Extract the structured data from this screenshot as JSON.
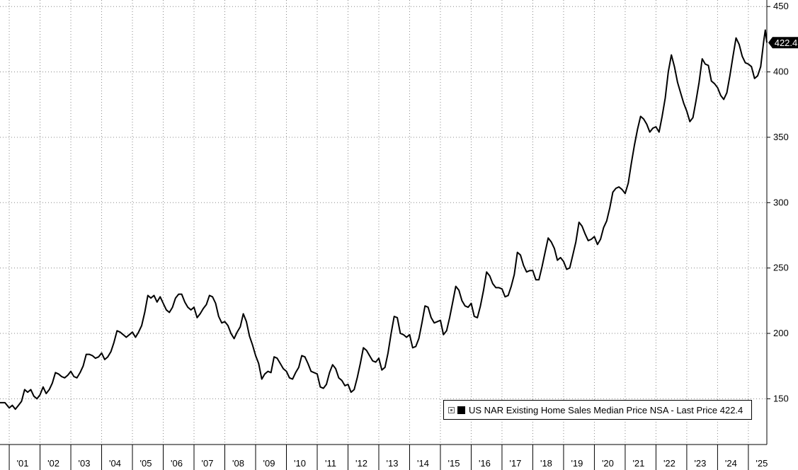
{
  "chart_data": {
    "type": "line",
    "title": "",
    "xlabel": "",
    "ylabel": "",
    "x_range": [
      2000.7,
      2025.6
    ],
    "ylim": [
      115,
      455
    ],
    "y_ticks": [
      150,
      200,
      250,
      300,
      350,
      400,
      450
    ],
    "x_ticks": [
      {
        "year": 2001,
        "label": "'01"
      },
      {
        "year": 2002,
        "label": "'02"
      },
      {
        "year": 2003,
        "label": "'03"
      },
      {
        "year": 2004,
        "label": "'04"
      },
      {
        "year": 2005,
        "label": "'05"
      },
      {
        "year": 2006,
        "label": "'06"
      },
      {
        "year": 2007,
        "label": "'07"
      },
      {
        "year": 2008,
        "label": "'08"
      },
      {
        "year": 2009,
        "label": "'09"
      },
      {
        "year": 2010,
        "label": "'10"
      },
      {
        "year": 2011,
        "label": "'11"
      },
      {
        "year": 2012,
        "label": "'12"
      },
      {
        "year": 2013,
        "label": "'13"
      },
      {
        "year": 2014,
        "label": "'14"
      },
      {
        "year": 2015,
        "label": "'15"
      },
      {
        "year": 2016,
        "label": "'16"
      },
      {
        "year": 2017,
        "label": "'17"
      },
      {
        "year": 2018,
        "label": "'18"
      },
      {
        "year": 2019,
        "label": "'19"
      },
      {
        "year": 2020,
        "label": "'20"
      },
      {
        "year": 2021,
        "label": "'21"
      },
      {
        "year": 2022,
        "label": "'22"
      },
      {
        "year": 2023,
        "label": "'23"
      },
      {
        "year": 2024,
        "label": "'24"
      },
      {
        "year": 2025,
        "label": "'25"
      }
    ],
    "grid": true,
    "legend_position": "bottom-right",
    "line_color": "#000000",
    "series": [
      {
        "name": "US NAR Existing Home Sales Median Price NSA",
        "points": [
          [
            2000.7,
            147
          ],
          [
            2000.86,
            147
          ],
          [
            2001.0,
            143
          ],
          [
            2001.1,
            145
          ],
          [
            2001.2,
            142
          ],
          [
            2001.3,
            145
          ],
          [
            2001.4,
            148
          ],
          [
            2001.5,
            157
          ],
          [
            2001.6,
            155
          ],
          [
            2001.7,
            157
          ],
          [
            2001.8,
            152
          ],
          [
            2001.9,
            150
          ],
          [
            2002.0,
            153
          ],
          [
            2002.1,
            159
          ],
          [
            2002.2,
            154
          ],
          [
            2002.3,
            157
          ],
          [
            2002.4,
            162
          ],
          [
            2002.5,
            170
          ],
          [
            2002.6,
            169
          ],
          [
            2002.7,
            167
          ],
          [
            2002.8,
            166
          ],
          [
            2002.9,
            168
          ],
          [
            2003.0,
            171
          ],
          [
            2003.1,
            167
          ],
          [
            2003.2,
            166
          ],
          [
            2003.3,
            170
          ],
          [
            2003.4,
            175
          ],
          [
            2003.5,
            184
          ],
          [
            2003.6,
            184
          ],
          [
            2003.7,
            183
          ],
          [
            2003.8,
            181
          ],
          [
            2003.9,
            182
          ],
          [
            2004.0,
            185
          ],
          [
            2004.1,
            180
          ],
          [
            2004.2,
            182
          ],
          [
            2004.3,
            186
          ],
          [
            2004.4,
            193
          ],
          [
            2004.5,
            202
          ],
          [
            2004.6,
            201
          ],
          [
            2004.7,
            199
          ],
          [
            2004.8,
            197
          ],
          [
            2004.9,
            199
          ],
          [
            2005.0,
            201
          ],
          [
            2005.1,
            197
          ],
          [
            2005.2,
            201
          ],
          [
            2005.3,
            206
          ],
          [
            2005.4,
            216
          ],
          [
            2005.5,
            229
          ],
          [
            2005.6,
            227
          ],
          [
            2005.7,
            229
          ],
          [
            2005.8,
            224
          ],
          [
            2005.9,
            228
          ],
          [
            2006.0,
            223
          ],
          [
            2006.1,
            218
          ],
          [
            2006.2,
            216
          ],
          [
            2006.3,
            220
          ],
          [
            2006.4,
            227
          ],
          [
            2006.5,
            230
          ],
          [
            2006.6,
            230
          ],
          [
            2006.7,
            224
          ],
          [
            2006.8,
            220
          ],
          [
            2006.9,
            218
          ],
          [
            2007.0,
            220
          ],
          [
            2007.1,
            212
          ],
          [
            2007.2,
            215
          ],
          [
            2007.3,
            219
          ],
          [
            2007.4,
            222
          ],
          [
            2007.5,
            229
          ],
          [
            2007.6,
            228
          ],
          [
            2007.7,
            223
          ],
          [
            2007.8,
            213
          ],
          [
            2007.9,
            208
          ],
          [
            2008.0,
            209
          ],
          [
            2008.1,
            206
          ],
          [
            2008.2,
            200
          ],
          [
            2008.3,
            196
          ],
          [
            2008.4,
            201
          ],
          [
            2008.5,
            205
          ],
          [
            2008.6,
            215
          ],
          [
            2008.7,
            209
          ],
          [
            2008.8,
            198
          ],
          [
            2008.9,
            191
          ],
          [
            2009.0,
            183
          ],
          [
            2009.1,
            177
          ],
          [
            2009.2,
            165
          ],
          [
            2009.3,
            169
          ],
          [
            2009.4,
            171
          ],
          [
            2009.5,
            170
          ],
          [
            2009.6,
            182
          ],
          [
            2009.7,
            181
          ],
          [
            2009.8,
            177
          ],
          [
            2009.9,
            173
          ],
          [
            2010.0,
            171
          ],
          [
            2010.1,
            166
          ],
          [
            2010.2,
            165
          ],
          [
            2010.3,
            170
          ],
          [
            2010.4,
            174
          ],
          [
            2010.5,
            183
          ],
          [
            2010.6,
            182
          ],
          [
            2010.7,
            177
          ],
          [
            2010.8,
            171
          ],
          [
            2010.9,
            170
          ],
          [
            2011.0,
            169
          ],
          [
            2011.1,
            159
          ],
          [
            2011.2,
            158
          ],
          [
            2011.3,
            161
          ],
          [
            2011.4,
            170
          ],
          [
            2011.5,
            176
          ],
          [
            2011.6,
            173
          ],
          [
            2011.7,
            166
          ],
          [
            2011.8,
            164
          ],
          [
            2011.9,
            160
          ],
          [
            2012.0,
            161
          ],
          [
            2012.1,
            155
          ],
          [
            2012.2,
            157
          ],
          [
            2012.3,
            166
          ],
          [
            2012.4,
            177
          ],
          [
            2012.5,
            189
          ],
          [
            2012.6,
            187
          ],
          [
            2012.7,
            183
          ],
          [
            2012.8,
            179
          ],
          [
            2012.9,
            178
          ],
          [
            2013.0,
            181
          ],
          [
            2013.1,
            172
          ],
          [
            2013.2,
            174
          ],
          [
            2013.3,
            185
          ],
          [
            2013.4,
            200
          ],
          [
            2013.5,
            213
          ],
          [
            2013.6,
            212
          ],
          [
            2013.7,
            200
          ],
          [
            2013.8,
            199
          ],
          [
            2013.9,
            197
          ],
          [
            2014.0,
            199
          ],
          [
            2014.1,
            189
          ],
          [
            2014.2,
            190
          ],
          [
            2014.3,
            196
          ],
          [
            2014.4,
            208
          ],
          [
            2014.5,
            221
          ],
          [
            2014.6,
            220
          ],
          [
            2014.7,
            212
          ],
          [
            2014.8,
            208
          ],
          [
            2014.9,
            209
          ],
          [
            2015.0,
            210
          ],
          [
            2015.1,
            199
          ],
          [
            2015.2,
            202
          ],
          [
            2015.3,
            212
          ],
          [
            2015.4,
            224
          ],
          [
            2015.5,
            236
          ],
          [
            2015.6,
            233
          ],
          [
            2015.7,
            225
          ],
          [
            2015.8,
            221
          ],
          [
            2015.9,
            220
          ],
          [
            2016.0,
            223
          ],
          [
            2016.1,
            213
          ],
          [
            2016.2,
            212
          ],
          [
            2016.3,
            221
          ],
          [
            2016.4,
            233
          ],
          [
            2016.5,
            247
          ],
          [
            2016.6,
            244
          ],
          [
            2016.7,
            238
          ],
          [
            2016.8,
            235
          ],
          [
            2016.9,
            235
          ],
          [
            2017.0,
            234
          ],
          [
            2017.1,
            228
          ],
          [
            2017.2,
            229
          ],
          [
            2017.3,
            236
          ],
          [
            2017.4,
            245
          ],
          [
            2017.5,
            262
          ],
          [
            2017.6,
            260
          ],
          [
            2017.7,
            252
          ],
          [
            2017.8,
            247
          ],
          [
            2017.9,
            248
          ],
          [
            2018.0,
            248
          ],
          [
            2018.1,
            241
          ],
          [
            2018.2,
            241
          ],
          [
            2018.3,
            251
          ],
          [
            2018.4,
            262
          ],
          [
            2018.5,
            273
          ],
          [
            2018.6,
            270
          ],
          [
            2018.7,
            265
          ],
          [
            2018.8,
            256
          ],
          [
            2018.9,
            258
          ],
          [
            2019.0,
            255
          ],
          [
            2019.1,
            249
          ],
          [
            2019.2,
            250
          ],
          [
            2019.3,
            260
          ],
          [
            2019.4,
            270
          ],
          [
            2019.5,
            285
          ],
          [
            2019.6,
            282
          ],
          [
            2019.7,
            276
          ],
          [
            2019.8,
            271
          ],
          [
            2019.9,
            272
          ],
          [
            2020.0,
            274
          ],
          [
            2020.1,
            268
          ],
          [
            2020.2,
            272
          ],
          [
            2020.3,
            281
          ],
          [
            2020.4,
            286
          ],
          [
            2020.5,
            296
          ],
          [
            2020.6,
            308
          ],
          [
            2020.7,
            311
          ],
          [
            2020.8,
            312
          ],
          [
            2020.9,
            310
          ],
          [
            2021.0,
            307
          ],
          [
            2021.1,
            315
          ],
          [
            2021.2,
            330
          ],
          [
            2021.3,
            344
          ],
          [
            2021.4,
            356
          ],
          [
            2021.5,
            366
          ],
          [
            2021.6,
            364
          ],
          [
            2021.7,
            360
          ],
          [
            2021.8,
            354
          ],
          [
            2021.9,
            357
          ],
          [
            2022.0,
            358
          ],
          [
            2022.1,
            354
          ],
          [
            2022.2,
            366
          ],
          [
            2022.3,
            380
          ],
          [
            2022.4,
            400
          ],
          [
            2022.5,
            413
          ],
          [
            2022.6,
            404
          ],
          [
            2022.7,
            392
          ],
          [
            2022.8,
            384
          ],
          [
            2022.9,
            376
          ],
          [
            2023.0,
            370
          ],
          [
            2023.1,
            362
          ],
          [
            2023.2,
            365
          ],
          [
            2023.3,
            378
          ],
          [
            2023.4,
            392
          ],
          [
            2023.5,
            410
          ],
          [
            2023.6,
            406
          ],
          [
            2023.7,
            405
          ],
          [
            2023.8,
            393
          ],
          [
            2023.9,
            391
          ],
          [
            2024.0,
            388
          ],
          [
            2024.1,
            382
          ],
          [
            2024.2,
            379
          ],
          [
            2024.3,
            384
          ],
          [
            2024.4,
            397
          ],
          [
            2024.5,
            412
          ],
          [
            2024.6,
            426
          ],
          [
            2024.7,
            421
          ],
          [
            2024.8,
            412
          ],
          [
            2024.9,
            407
          ],
          [
            2025.0,
            406
          ],
          [
            2025.1,
            404
          ],
          [
            2025.2,
            395
          ],
          [
            2025.3,
            397
          ],
          [
            2025.4,
            404
          ],
          [
            2025.5,
            424
          ],
          [
            2025.55,
            432
          ],
          [
            2025.6,
            422.4
          ]
        ]
      }
    ],
    "last_price_label": "422.4"
  },
  "legend": {
    "text": "US NAR Existing Home Sales Median Price NSA - Last Price 422.4"
  }
}
